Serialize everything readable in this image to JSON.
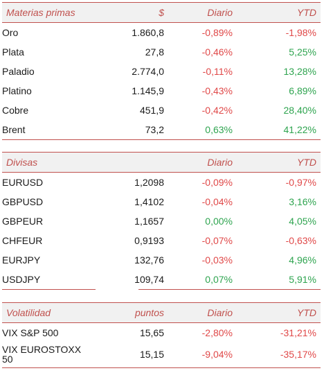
{
  "commodities": {
    "header": {
      "name": "Materias primas",
      "unit": "$",
      "daily": "Diario",
      "ytd": "YTD"
    },
    "rows": [
      {
        "name": "Oro",
        "value": "1.860,8",
        "daily": "-0,89%",
        "ytd": "-1,98%"
      },
      {
        "name": "Plata",
        "value": "27,8",
        "daily": "-0,46%",
        "ytd": "5,25%"
      },
      {
        "name": "Paladio",
        "value": "2.774,0",
        "daily": "-0,11%",
        "ytd": "13,28%"
      },
      {
        "name": "Platino",
        "value": "1.145,9",
        "daily": "-0,43%",
        "ytd": "6,89%"
      },
      {
        "name": "Cobre",
        "value": "451,9",
        "daily": "-0,42%",
        "ytd": "28,40%"
      },
      {
        "name": "Brent",
        "value": "73,2",
        "daily": "0,63%",
        "ytd": "41,22%"
      }
    ]
  },
  "currencies": {
    "header": {
      "name": "Divisas",
      "daily": "Diario",
      "ytd": "YTD"
    },
    "rows": [
      {
        "name": "EURUSD",
        "value": "1,2098",
        "daily": "-0,09%",
        "ytd": "-0,97%"
      },
      {
        "name": "GBPUSD",
        "value": "1,4102",
        "daily": "-0,04%",
        "ytd": "3,16%"
      },
      {
        "name": "GBPEUR",
        "value": "1,1657",
        "daily": "0,00%",
        "ytd": "4,05%"
      },
      {
        "name": "CHFEUR",
        "value": "0,9193",
        "daily": "-0,07%",
        "ytd": "-0,63%"
      },
      {
        "name": "EURJPY",
        "value": "132,76",
        "daily": "-0,03%",
        "ytd": "4,96%"
      },
      {
        "name": "USDJPY",
        "value": "109,74",
        "daily": "0,07%",
        "ytd": "5,91%"
      }
    ]
  },
  "volatility": {
    "header": {
      "name": "Volatilidad",
      "unit": "puntos",
      "daily": "Diario",
      "ytd": "YTD"
    },
    "rows": [
      {
        "name": "VIX S&P 500",
        "value": "15,65",
        "daily": "-2,80%",
        "ytd": "-31,21%"
      },
      {
        "name": "VIX EUROSTOXX 50",
        "value": "15,15",
        "daily": "-9,04%",
        "ytd": "-35,17%"
      }
    ]
  },
  "colors": {
    "accent": "#c0504d",
    "negative": "#e04848",
    "positive": "#2ea44f",
    "header_bg": "#f1f1f1"
  }
}
